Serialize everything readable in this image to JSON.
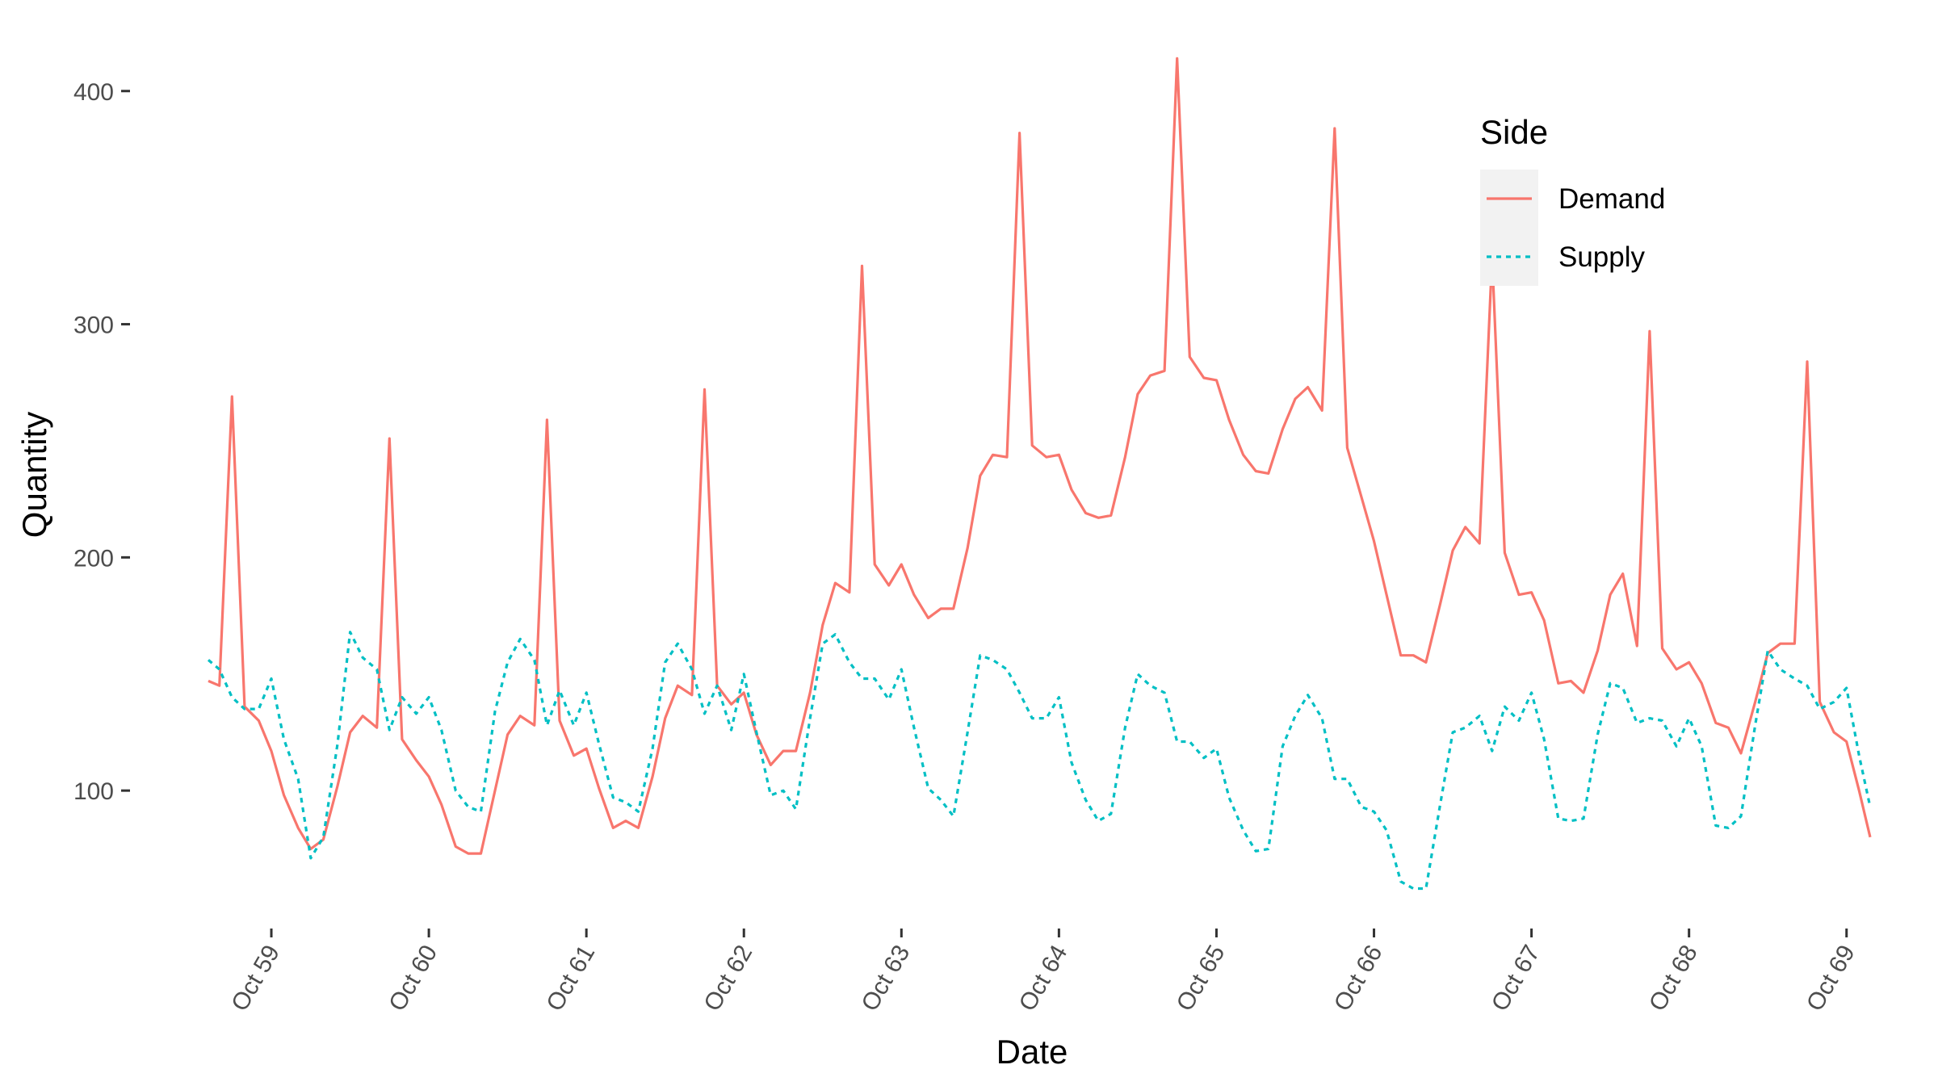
{
  "chart_data": {
    "type": "line",
    "xlabel": "Date",
    "ylabel": "Quantity",
    "xlim": [
      58.6,
      69.15
    ],
    "ylim": [
      45,
      420
    ],
    "x_ticks": [
      {
        "value": 59,
        "label": "Oct 59"
      },
      {
        "value": 60,
        "label": "Oct 60"
      },
      {
        "value": 61,
        "label": "Oct 61"
      },
      {
        "value": 62,
        "label": "Oct 62"
      },
      {
        "value": 63,
        "label": "Oct 63"
      },
      {
        "value": 64,
        "label": "Oct 64"
      },
      {
        "value": 65,
        "label": "Oct 65"
      },
      {
        "value": 66,
        "label": "Oct 66"
      },
      {
        "value": 67,
        "label": "Oct 67"
      },
      {
        "value": 68,
        "label": "Oct 68"
      },
      {
        "value": 69,
        "label": "Oct 69"
      }
    ],
    "y_ticks": [
      {
        "value": 100,
        "label": "100"
      },
      {
        "value": 200,
        "label": "200"
      },
      {
        "value": 300,
        "label": "300"
      },
      {
        "value": 400,
        "label": "400"
      }
    ],
    "legend": {
      "title": "Side",
      "position": "top-right"
    },
    "series": [
      {
        "name": "Demand",
        "color": "#F8766D",
        "dash": "solid",
        "points": [
          [
            58.6,
            147
          ],
          [
            58.67,
            145
          ],
          [
            58.75,
            269
          ],
          [
            58.83,
            136
          ],
          [
            58.92,
            130
          ],
          [
            59.0,
            117
          ],
          [
            59.08,
            98
          ],
          [
            59.17,
            84
          ],
          [
            59.25,
            75
          ],
          [
            59.33,
            79
          ],
          [
            59.42,
            102
          ],
          [
            59.5,
            125
          ],
          [
            59.58,
            132
          ],
          [
            59.67,
            127
          ],
          [
            59.75,
            251
          ],
          [
            59.83,
            122
          ],
          [
            59.92,
            113
          ],
          [
            60.0,
            106
          ],
          [
            60.08,
            94
          ],
          [
            60.17,
            76
          ],
          [
            60.25,
            73
          ],
          [
            60.33,
            73
          ],
          [
            60.42,
            100
          ],
          [
            60.5,
            124
          ],
          [
            60.58,
            132
          ],
          [
            60.67,
            128
          ],
          [
            60.75,
            259
          ],
          [
            60.83,
            130
          ],
          [
            60.92,
            115
          ],
          [
            61.0,
            118
          ],
          [
            61.08,
            101
          ],
          [
            61.17,
            84
          ],
          [
            61.25,
            87
          ],
          [
            61.33,
            84
          ],
          [
            61.42,
            106
          ],
          [
            61.5,
            131
          ],
          [
            61.58,
            145
          ],
          [
            61.67,
            141
          ],
          [
            61.75,
            272
          ],
          [
            61.83,
            145
          ],
          [
            61.92,
            137
          ],
          [
            62.0,
            142
          ],
          [
            62.08,
            124
          ],
          [
            62.17,
            111
          ],
          [
            62.25,
            117
          ],
          [
            62.33,
            117
          ],
          [
            62.42,
            142
          ],
          [
            62.5,
            171
          ],
          [
            62.58,
            189
          ],
          [
            62.67,
            185
          ],
          [
            62.75,
            325
          ],
          [
            62.83,
            197
          ],
          [
            62.92,
            188
          ],
          [
            63.0,
            197
          ],
          [
            63.08,
            184
          ],
          [
            63.17,
            174
          ],
          [
            63.25,
            178
          ],
          [
            63.33,
            178
          ],
          [
            63.42,
            204
          ],
          [
            63.5,
            235
          ],
          [
            63.58,
            244
          ],
          [
            63.67,
            243
          ],
          [
            63.75,
            382
          ],
          [
            63.83,
            248
          ],
          [
            63.92,
            243
          ],
          [
            64.0,
            244
          ],
          [
            64.08,
            229
          ],
          [
            64.17,
            219
          ],
          [
            64.25,
            217
          ],
          [
            64.33,
            218
          ],
          [
            64.42,
            243
          ],
          [
            64.5,
            270
          ],
          [
            64.58,
            278
          ],
          [
            64.67,
            280
          ],
          [
            64.75,
            414
          ],
          [
            64.83,
            286
          ],
          [
            64.92,
            277
          ],
          [
            65.0,
            276
          ],
          [
            65.08,
            259
          ],
          [
            65.17,
            244
          ],
          [
            65.25,
            237
          ],
          [
            65.33,
            236
          ],
          [
            65.42,
            255
          ],
          [
            65.5,
            268
          ],
          [
            65.58,
            273
          ],
          [
            65.67,
            263
          ],
          [
            65.75,
            384
          ],
          [
            65.83,
            247
          ],
          [
            65.92,
            226
          ],
          [
            66.0,
            207
          ],
          [
            66.08,
            184
          ],
          [
            66.17,
            158
          ],
          [
            66.25,
            158
          ],
          [
            66.33,
            155
          ],
          [
            66.42,
            180
          ],
          [
            66.5,
            203
          ],
          [
            66.58,
            213
          ],
          [
            66.67,
            206
          ],
          [
            66.75,
            329
          ],
          [
            66.83,
            202
          ],
          [
            66.92,
            184
          ],
          [
            67.0,
            185
          ],
          [
            67.08,
            173
          ],
          [
            67.17,
            146
          ],
          [
            67.25,
            147
          ],
          [
            67.33,
            142
          ],
          [
            67.42,
            160
          ],
          [
            67.5,
            184
          ],
          [
            67.58,
            193
          ],
          [
            67.67,
            162
          ],
          [
            67.75,
            297
          ],
          [
            67.83,
            161
          ],
          [
            67.92,
            152
          ],
          [
            68.0,
            155
          ],
          [
            68.08,
            146
          ],
          [
            68.17,
            129
          ],
          [
            68.25,
            127
          ],
          [
            68.33,
            116
          ],
          [
            68.42,
            138
          ],
          [
            68.5,
            159
          ],
          [
            68.58,
            163
          ],
          [
            68.67,
            163
          ],
          [
            68.75,
            284
          ],
          [
            68.83,
            138
          ],
          [
            68.92,
            125
          ],
          [
            69.0,
            121
          ],
          [
            69.08,
            100
          ],
          [
            69.15,
            80
          ]
        ]
      },
      {
        "name": "Supply",
        "color": "#00BFC4",
        "dash": "dotted",
        "points": [
          [
            58.6,
            156
          ],
          [
            58.67,
            152
          ],
          [
            58.75,
            140
          ],
          [
            58.83,
            135
          ],
          [
            58.92,
            135
          ],
          [
            59.0,
            148
          ],
          [
            59.08,
            122
          ],
          [
            59.17,
            105
          ],
          [
            59.25,
            71
          ],
          [
            59.33,
            80
          ],
          [
            59.42,
            120
          ],
          [
            59.5,
            168
          ],
          [
            59.58,
            157
          ],
          [
            59.67,
            152
          ],
          [
            59.75,
            126
          ],
          [
            59.83,
            140
          ],
          [
            59.92,
            133
          ],
          [
            60.0,
            140
          ],
          [
            60.08,
            126
          ],
          [
            60.17,
            100
          ],
          [
            60.25,
            93
          ],
          [
            60.33,
            91
          ],
          [
            60.42,
            134
          ],
          [
            60.5,
            155
          ],
          [
            60.58,
            165
          ],
          [
            60.67,
            156
          ],
          [
            60.75,
            128
          ],
          [
            60.83,
            143
          ],
          [
            60.92,
            128
          ],
          [
            61.0,
            142
          ],
          [
            61.08,
            120
          ],
          [
            61.17,
            97
          ],
          [
            61.25,
            95
          ],
          [
            61.33,
            91
          ],
          [
            61.42,
            118
          ],
          [
            61.5,
            155
          ],
          [
            61.58,
            163
          ],
          [
            61.67,
            152
          ],
          [
            61.75,
            133
          ],
          [
            61.83,
            145
          ],
          [
            61.92,
            126
          ],
          [
            62.0,
            150
          ],
          [
            62.08,
            125
          ],
          [
            62.17,
            98
          ],
          [
            62.25,
            100
          ],
          [
            62.33,
            92
          ],
          [
            62.42,
            131
          ],
          [
            62.5,
            163
          ],
          [
            62.58,
            167
          ],
          [
            62.67,
            155
          ],
          [
            62.75,
            148
          ],
          [
            62.83,
            148
          ],
          [
            62.92,
            139
          ],
          [
            63.0,
            152
          ],
          [
            63.08,
            127
          ],
          [
            63.17,
            101
          ],
          [
            63.25,
            96
          ],
          [
            63.33,
            89
          ],
          [
            63.42,
            125
          ],
          [
            63.5,
            158
          ],
          [
            63.58,
            156
          ],
          [
            63.67,
            152
          ],
          [
            63.75,
            142
          ],
          [
            63.83,
            131
          ],
          [
            63.92,
            131
          ],
          [
            64.0,
            140
          ],
          [
            64.08,
            112
          ],
          [
            64.17,
            96
          ],
          [
            64.25,
            87
          ],
          [
            64.33,
            90
          ],
          [
            64.42,
            127
          ],
          [
            64.5,
            150
          ],
          [
            64.58,
            145
          ],
          [
            64.67,
            142
          ],
          [
            64.75,
            121
          ],
          [
            64.83,
            121
          ],
          [
            64.92,
            114
          ],
          [
            65.0,
            118
          ],
          [
            65.08,
            97
          ],
          [
            65.17,
            83
          ],
          [
            65.25,
            74
          ],
          [
            65.33,
            75
          ],
          [
            65.42,
            119
          ],
          [
            65.5,
            132
          ],
          [
            65.58,
            141
          ],
          [
            65.67,
            131
          ],
          [
            65.75,
            105
          ],
          [
            65.83,
            105
          ],
          [
            65.92,
            93
          ],
          [
            66.0,
            91
          ],
          [
            66.08,
            83
          ],
          [
            66.17,
            61
          ],
          [
            66.25,
            58
          ],
          [
            66.33,
            58
          ],
          [
            66.42,
            94
          ],
          [
            66.5,
            125
          ],
          [
            66.58,
            127
          ],
          [
            66.67,
            132
          ],
          [
            66.75,
            117
          ],
          [
            66.83,
            136
          ],
          [
            66.92,
            130
          ],
          [
            67.0,
            142
          ],
          [
            67.08,
            122
          ],
          [
            67.17,
            88
          ],
          [
            67.25,
            87
          ],
          [
            67.33,
            88
          ],
          [
            67.42,
            124
          ],
          [
            67.5,
            146
          ],
          [
            67.58,
            144
          ],
          [
            67.67,
            129
          ],
          [
            67.75,
            131
          ],
          [
            67.83,
            130
          ],
          [
            67.92,
            119
          ],
          [
            68.0,
            131
          ],
          [
            68.08,
            119
          ],
          [
            68.17,
            85
          ],
          [
            68.25,
            84
          ],
          [
            68.33,
            89
          ],
          [
            68.42,
            128
          ],
          [
            68.5,
            160
          ],
          [
            68.58,
            152
          ],
          [
            68.67,
            148
          ],
          [
            68.75,
            145
          ],
          [
            68.83,
            135
          ],
          [
            68.92,
            138
          ],
          [
            69.0,
            144
          ],
          [
            69.08,
            115
          ],
          [
            69.15,
            93
          ]
        ]
      }
    ]
  }
}
